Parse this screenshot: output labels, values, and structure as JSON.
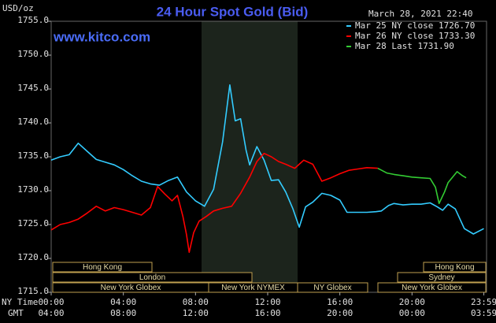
{
  "chart_data": {
    "type": "line",
    "title": "24 Hour Spot Gold (Bid)",
    "unit_label": "USD/oz",
    "timestamp": "March 28, 2021 22:40",
    "site": "www.kitco.com",
    "x_label": "NY Time",
    "x2_label": "GMT",
    "xlim": [
      0,
      24
    ],
    "xticks": [
      {
        "value": 0,
        "label": "00:00"
      },
      {
        "value": 4,
        "label": "04:00"
      },
      {
        "value": 8,
        "label": "08:00"
      },
      {
        "value": 12,
        "label": "12:00"
      },
      {
        "value": 16,
        "label": "16:00"
      },
      {
        "value": 20,
        "label": "20:00"
      },
      {
        "value": 23.98,
        "label": "23:59"
      }
    ],
    "x2ticklabels": [
      "04:00",
      "08:00",
      "12:00",
      "16:00",
      "20:00",
      "00:00",
      "03:59"
    ],
    "ylim": [
      1715,
      1755
    ],
    "yticks": [
      {
        "value": 1715,
        "label": "1715.0"
      },
      {
        "value": 1720,
        "label": "1720.0"
      },
      {
        "value": 1725,
        "label": "1725.0"
      },
      {
        "value": 1730,
        "label": "1730.0"
      },
      {
        "value": 1735,
        "label": "1735.0"
      },
      {
        "value": 1740,
        "label": "1740.0"
      },
      {
        "value": 1745,
        "label": "1745.0"
      },
      {
        "value": 1750,
        "label": "1750.0"
      },
      {
        "value": 1755,
        "label": "1755.0"
      }
    ],
    "grid": false,
    "legend": "top-right",
    "sessions": [
      "Hong Kong",
      "Hong Kong",
      "London",
      "Sydney",
      "New York Globex",
      "New York NYMEX",
      "NY Globex",
      "New York Globex"
    ],
    "series": [
      {
        "name": "Mar 25 NY close 1726.70",
        "color": "#33ccff",
        "x": [
          0,
          0.5,
          1,
          1.5,
          2,
          2.5,
          3,
          3.5,
          4,
          4.5,
          5,
          5.5,
          6,
          6.5,
          7,
          7.5,
          8,
          8.5,
          9,
          9.5,
          9.9,
          10.2,
          10.5,
          10.8,
          11,
          11.4,
          11.8,
          12.2,
          12.6,
          13,
          13.4,
          13.75,
          14.1,
          14.5,
          15,
          15.5,
          16,
          16.4,
          17,
          17.5,
          18,
          18.3,
          18.7,
          19,
          19.5,
          20,
          20.5,
          21,
          21.4,
          21.7,
          22,
          22.4,
          22.9,
          23.4,
          23.98
        ],
        "values": [
          1734.5,
          1735,
          1735.3,
          1737,
          1735.8,
          1734.6,
          1734.2,
          1733.8,
          1733.1,
          1732.2,
          1731.4,
          1731,
          1730.8,
          1731.5,
          1732,
          1729.8,
          1728.5,
          1727.7,
          1730.2,
          1737.2,
          1745.6,
          1740.3,
          1740.6,
          1736,
          1733.8,
          1736.5,
          1734.5,
          1731.5,
          1731.6,
          1729.8,
          1727.3,
          1724.6,
          1727.6,
          1728.3,
          1729.6,
          1729.3,
          1728.6,
          1726.8,
          1726.8,
          1726.8,
          1726.9,
          1727,
          1727.8,
          1728.1,
          1727.9,
          1728,
          1728,
          1728.2,
          1727.6,
          1727.1,
          1728,
          1727.3,
          1724.4,
          1723.6,
          1724.4
        ]
      },
      {
        "name": "Mar 26 NY close 1733.30",
        "color": "#ff0000",
        "x": [
          0,
          0.5,
          1,
          1.5,
          2,
          2.5,
          3,
          3.5,
          4,
          4.5,
          5,
          5.5,
          5.9,
          6.3,
          6.7,
          7,
          7.3,
          7.5,
          7.65,
          7.9,
          8.2,
          8.6,
          9,
          9.5,
          10,
          10.5,
          11,
          11.4,
          11.8,
          12.2,
          12.6,
          13,
          13.5,
          14,
          14.5,
          15,
          15.5,
          16,
          16.5,
          17,
          17.5,
          18.1
        ],
        "values": [
          1724.2,
          1725,
          1725.3,
          1725.8,
          1726.7,
          1727.7,
          1727,
          1727.5,
          1727.2,
          1726.8,
          1726.4,
          1727.5,
          1730.6,
          1729.5,
          1728.5,
          1729.3,
          1726.2,
          1723.5,
          1720.9,
          1723.8,
          1725.5,
          1726.2,
          1727,
          1727.4,
          1727.7,
          1729.6,
          1732,
          1734.3,
          1735.5,
          1735,
          1734.3,
          1733.9,
          1733.3,
          1734.5,
          1733.9,
          1731.4,
          1731.9,
          1732.5,
          1733,
          1733.2,
          1733.4,
          1733.3
        ]
      },
      {
        "name": "Mar 28 Last 1731.90",
        "color": "#33cc33",
        "x": [
          18.1,
          18.6,
          19,
          19.5,
          20,
          20.5,
          21,
          21.3,
          21.5,
          21.8,
          22,
          22.5,
          22.8,
          23
        ],
        "values": [
          1733.3,
          1732.6,
          1732.4,
          1732.2,
          1732,
          1731.9,
          1731.8,
          1730.5,
          1728.1,
          1729.8,
          1731.2,
          1732.8,
          1732.2,
          1731.9
        ]
      }
    ]
  }
}
